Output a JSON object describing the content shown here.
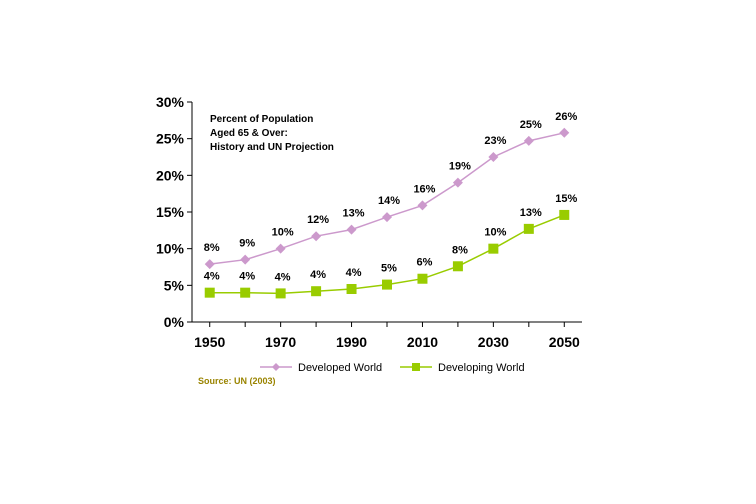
{
  "chart_data": {
    "type": "line",
    "title_lines": [
      "Percent of Population",
      "Aged 65 & Over:",
      "History and UN Projection"
    ],
    "x": [
      1950,
      1960,
      1970,
      1980,
      1990,
      2000,
      2010,
      2020,
      2030,
      2040,
      2050
    ],
    "x_tick_labels": [
      "1950",
      "1970",
      "1990",
      "2010",
      "2030",
      "2050"
    ],
    "x_tick_values": [
      1950,
      1970,
      1990,
      2010,
      2030,
      2050
    ],
    "y_tick_labels": [
      "0%",
      "5%",
      "10%",
      "15%",
      "20%",
      "25%",
      "30%"
    ],
    "y_tick_values": [
      0,
      5,
      10,
      15,
      20,
      25,
      30
    ],
    "ylim": [
      0,
      30
    ],
    "xlim": [
      1945,
      2055
    ],
    "grid": false,
    "legend_position": "bottom",
    "series": [
      {
        "name": "Developed World",
        "color": "#cc99cc",
        "marker": "diamond",
        "values": [
          7.9,
          8.5,
          10.0,
          11.7,
          12.6,
          14.3,
          15.9,
          19.0,
          22.5,
          24.7,
          25.8
        ],
        "labels": [
          "8%",
          "9%",
          "10%",
          "12%",
          "13%",
          "14%",
          "16%",
          "19%",
          "23%",
          "25%",
          "26%"
        ]
      },
      {
        "name": "Developing World",
        "color": "#99cc00",
        "marker": "square",
        "values": [
          4.0,
          4.0,
          3.9,
          4.2,
          4.5,
          5.1,
          5.9,
          7.6,
          10.0,
          12.7,
          14.6
        ],
        "labels": [
          "4%",
          "4%",
          "4%",
          "4%",
          "4%",
          "5%",
          "6%",
          "8%",
          "10%",
          "13%",
          "15%"
        ]
      }
    ],
    "source": "Source: UN (2003)"
  }
}
